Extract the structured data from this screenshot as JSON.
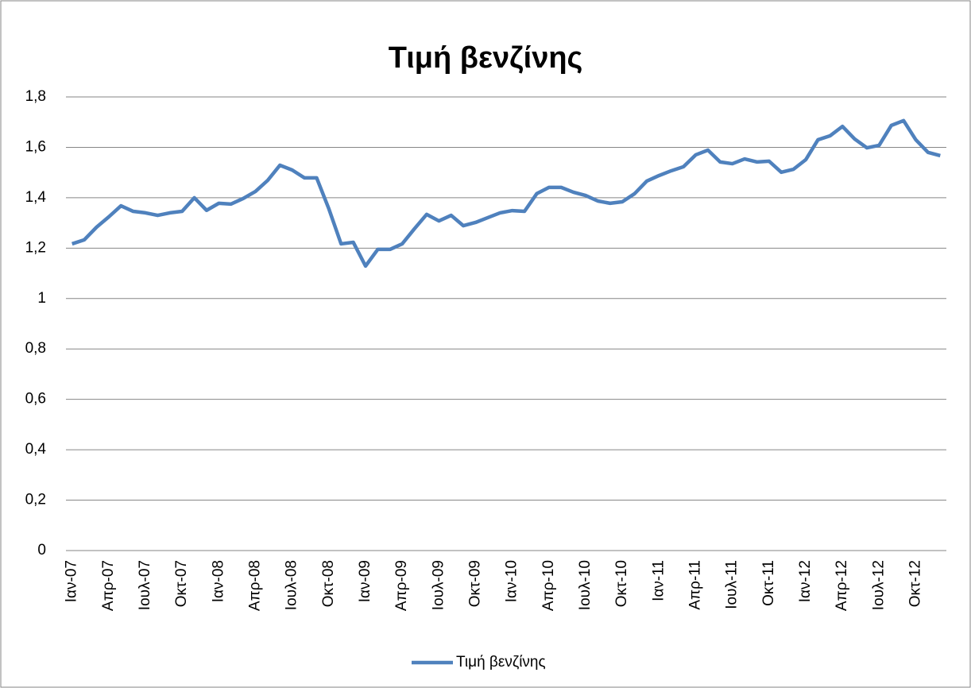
{
  "chart_data": {
    "type": "line",
    "title": "Τιμή βενζίνης",
    "categories": [
      "Ιαν-07",
      null,
      null,
      "Απρ-07",
      null,
      null,
      "Ιουλ-07",
      null,
      null,
      "Οκτ-07",
      null,
      null,
      "Ιαν-08",
      null,
      null,
      "Απρ-08",
      null,
      null,
      "Ιουλ-08",
      null,
      null,
      "Οκτ-08",
      null,
      null,
      "Ιαν-09",
      null,
      null,
      "Απρ-09",
      null,
      null,
      "Ιουλ-09",
      null,
      null,
      "Οκτ-09",
      null,
      null,
      "Ιαν-10",
      null,
      null,
      "Απρ-10",
      null,
      null,
      "Ιουλ-10",
      null,
      null,
      "Οκτ-10",
      null,
      null,
      "Ιαν-11",
      null,
      null,
      "Απρ-11",
      null,
      null,
      "Ιουλ-11",
      null,
      null,
      "Οκτ-11",
      null,
      null,
      "Ιαν-12",
      null,
      null,
      "Απρ-12",
      null,
      null,
      "Ιουλ-12",
      null,
      null,
      "Οκτ-12",
      null,
      null
    ],
    "series": [
      {
        "name": "Τιμή βενζίνης",
        "color": "#4f81bd",
        "values": [
          1.217,
          1.233,
          1.283,
          1.324,
          1.368,
          1.346,
          1.34,
          1.33,
          1.34,
          1.346,
          1.4,
          1.35,
          1.378,
          1.375,
          1.397,
          1.425,
          1.469,
          1.529,
          1.51,
          1.479,
          1.479,
          1.356,
          1.217,
          1.223,
          1.129,
          1.195,
          1.195,
          1.217,
          1.277,
          1.334,
          1.308,
          1.33,
          1.289,
          1.302,
          1.321,
          1.34,
          1.349,
          1.346,
          1.416,
          1.441,
          1.441,
          1.422,
          1.409,
          1.387,
          1.378,
          1.384,
          1.416,
          1.466,
          1.488,
          1.507,
          1.523,
          1.57,
          1.589,
          1.542,
          1.535,
          1.554,
          1.542,
          1.545,
          1.501,
          1.513,
          1.551,
          1.63,
          1.646,
          1.683,
          1.633,
          1.598,
          1.608,
          1.687,
          1.706,
          1.63,
          1.58,
          1.567
        ]
      }
    ],
    "ylim": [
      0,
      1.8
    ],
    "yticks": [
      0,
      {
        "value": 0.2,
        "label": "0,2"
      },
      {
        "value": 0.4,
        "label": "0,4"
      },
      {
        "value": 0.6,
        "label": "0,6"
      },
      {
        "value": 0.8,
        "label": "0,8"
      },
      1,
      {
        "value": 1.2,
        "label": "1,2"
      },
      {
        "value": 1.4,
        "label": "1,4"
      },
      {
        "value": 1.6,
        "label": "1,6"
      },
      {
        "value": 1.8,
        "label": "1,8"
      }
    ],
    "grid": true,
    "legend": "bottom"
  }
}
